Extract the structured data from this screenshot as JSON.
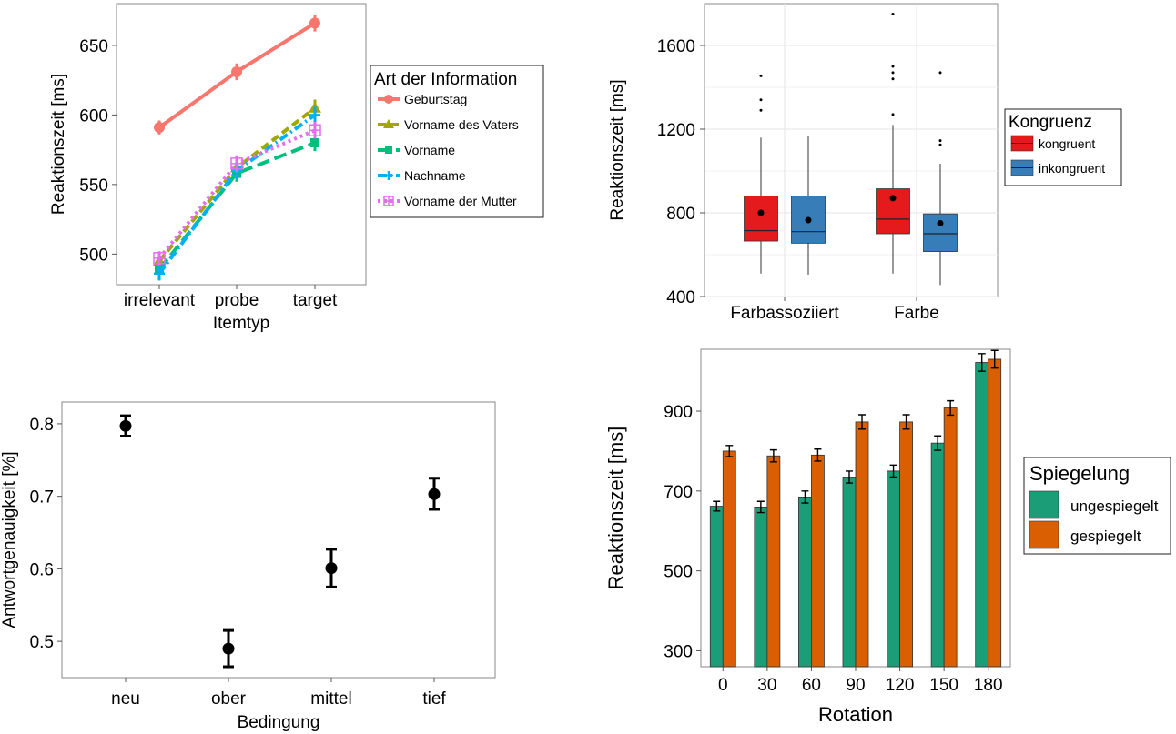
{
  "chart_data": [
    {
      "type": "line",
      "xlabel": "Itemtyp",
      "ylabel": "Reaktionszeit [ms]",
      "categories": [
        "irrelevant",
        "probe",
        "target"
      ],
      "yticks": [
        500,
        550,
        600,
        650
      ],
      "ylim": [
        478,
        680
      ],
      "legend": {
        "title": "Art der Information",
        "placement": "right"
      },
      "series": [
        {
          "name": "Geburtstag",
          "values": [
            591,
            631,
            666
          ],
          "errors": [
            5,
            6,
            6
          ],
          "color": "#f8766d",
          "marker": "circle",
          "dash": "solid"
        },
        {
          "name": "Vorname des Vaters",
          "values": [
            495,
            562,
            605
          ],
          "errors": [
            5,
            6,
            6
          ],
          "color": "#a3a500",
          "marker": "triangle",
          "dash": "dashed"
        },
        {
          "name": "Vorname",
          "values": [
            489,
            558,
            580
          ],
          "errors": [
            5,
            6,
            6
          ],
          "color": "#00bf7d",
          "marker": "square",
          "dash": "longdash"
        },
        {
          "name": "Nachname",
          "values": [
            486,
            560,
            600
          ],
          "errors": [
            5,
            6,
            6
          ],
          "color": "#00b0f6",
          "marker": "cross",
          "dash": "dotdash"
        },
        {
          "name": "Vorname der Mutter",
          "values": [
            497,
            565,
            589
          ],
          "errors": [
            5,
            6,
            6
          ],
          "color": "#e76bf3",
          "marker": "boxplus",
          "dash": "dotted"
        }
      ]
    },
    {
      "type": "box",
      "ylabel": "Reaktionszeit [ms]",
      "categories": [
        "Farbassoziiert",
        "Farbe"
      ],
      "yticks": [
        400,
        800,
        1200,
        1600
      ],
      "ylim": [
        400,
        1800
      ],
      "legend": {
        "title": "Kongruenz",
        "placement": "right"
      },
      "series": [
        {
          "name": "kongruent",
          "color": "#e41a1c",
          "boxes": [
            {
              "min": 510,
              "q1": 665,
              "median": 715,
              "q3": 880,
              "max": 1160,
              "mean": 800,
              "outliers": [
                1290,
                1340,
                1455
              ]
            },
            {
              "min": 510,
              "q1": 700,
              "median": 770,
              "q3": 915,
              "max": 1220,
              "mean": 870,
              "outliers": [
                1270,
                1440,
                1470,
                1500,
                1750
              ]
            }
          ]
        },
        {
          "name": "inkongruent",
          "color": "#377eb8",
          "boxes": [
            {
              "min": 505,
              "q1": 655,
              "median": 710,
              "q3": 880,
              "max": 1165,
              "mean": 765,
              "outliers": []
            },
            {
              "min": 455,
              "q1": 615,
              "median": 700,
              "q3": 795,
              "max": 1035,
              "mean": 750,
              "outliers": [
                1125,
                1145,
                1470
              ]
            }
          ]
        }
      ]
    },
    {
      "type": "scatter",
      "xlabel": "Bedingung",
      "ylabel": "Antwortgenauigkeit [%]",
      "categories": [
        "neu",
        "ober",
        "mittel",
        "tief"
      ],
      "yticks": [
        0.5,
        0.6,
        0.7,
        0.8
      ],
      "ylim": [
        0.45,
        0.83
      ],
      "values": [
        0.797,
        0.49,
        0.601,
        0.703
      ],
      "err_low": [
        0.783,
        0.465,
        0.575,
        0.682
      ],
      "err_high": [
        0.811,
        0.515,
        0.627,
        0.725
      ]
    },
    {
      "type": "bar",
      "xlabel": "Rotation",
      "ylabel": "Reaktionszeit [ms]",
      "categories": [
        "0",
        "30",
        "60",
        "90",
        "120",
        "150",
        "180"
      ],
      "yticks": [
        300,
        500,
        700,
        900
      ],
      "ylim": [
        260,
        1055
      ],
      "legend": {
        "title": "Spiegelung",
        "placement": "right"
      },
      "series": [
        {
          "name": "ungespiegelt",
          "color": "#1b9e77",
          "values": [
            662,
            660,
            685,
            735,
            750,
            820,
            1022
          ],
          "errors": [
            12,
            14,
            15,
            15,
            15,
            18,
            22
          ]
        },
        {
          "name": "gespiegelt",
          "color": "#d95f02",
          "values": [
            800,
            788,
            790,
            873,
            873,
            908,
            1030
          ],
          "errors": [
            14,
            15,
            15,
            18,
            18,
            18,
            22
          ]
        }
      ]
    }
  ]
}
